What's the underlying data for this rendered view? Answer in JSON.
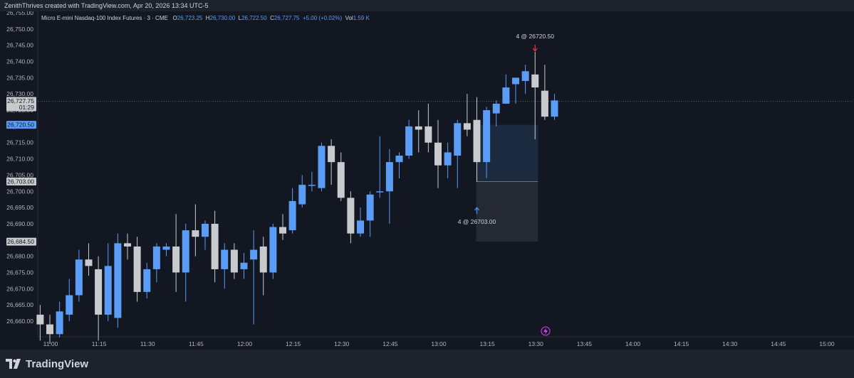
{
  "header": {
    "credit": "ZenithThrives created with TradingView.com, Apr 20, 2026 13:34 UTC-5"
  },
  "legend": {
    "symbol": "Micro E-mini Nasdaq-100 Index Futures · 3 · CME",
    "o_label": "O",
    "open": "26,723.25",
    "h_label": "H",
    "high": "26,730.00",
    "l_label": "L",
    "low": "26,722.50",
    "c_label": "C",
    "close": "26,727.75",
    "change": "+5.00 (+0.02%)",
    "vol_label": "Vol",
    "volume": "1.59 K"
  },
  "footer": {
    "brand": "TradingView"
  },
  "colors": {
    "up": "#5b9cf6",
    "down": "#c9cacd",
    "background": "#131722",
    "entry_arrow": "#4c8dff",
    "exit_arrow": "#f23645"
  },
  "chart_data": {
    "type": "candlestick",
    "interval_minutes": 3,
    "ylim": [
      26655,
      26755
    ],
    "y_ticks": [
      26660,
      26665,
      26670,
      26675,
      26680,
      26685,
      26690,
      26695,
      26700,
      26705,
      26710,
      26715,
      26720,
      26725,
      26730,
      26735,
      26740,
      26745,
      26750,
      26755
    ],
    "x_ticks": [
      "11:00",
      "11:15",
      "11:30",
      "11:45",
      "12:00",
      "12:15",
      "12:30",
      "12:45",
      "13:00",
      "13:15",
      "13:30",
      "13:45",
      "14:00",
      "14:15",
      "14:30",
      "14:45",
      "15:00"
    ],
    "x_tick_minutes": [
      660,
      675,
      690,
      705,
      720,
      735,
      750,
      765,
      780,
      795,
      810,
      825,
      840,
      855,
      870,
      885,
      900
    ],
    "xlim_minutes": [
      658,
      904
    ],
    "candles": [
      {
        "t": "10:57",
        "o": 26662,
        "h": 26665,
        "l": 26654,
        "c": 26659
      },
      {
        "t": "11:00",
        "o": 26659,
        "h": 26662,
        "l": 26653,
        "c": 26656
      },
      {
        "t": "11:03",
        "o": 26656,
        "h": 26666,
        "l": 26655,
        "c": 26663
      },
      {
        "t": "11:06",
        "o": 26662,
        "h": 26673,
        "l": 26660,
        "c": 26668
      },
      {
        "t": "11:09",
        "o": 26668,
        "h": 26682,
        "l": 26666,
        "c": 26679
      },
      {
        "t": "11:12",
        "o": 26679,
        "h": 26684,
        "l": 26674,
        "c": 26677
      },
      {
        "t": "11:15",
        "o": 26676,
        "h": 26680,
        "l": 26654,
        "c": 26662
      },
      {
        "t": "11:18",
        "o": 26662,
        "h": 26684,
        "l": 26660,
        "c": 26677
      },
      {
        "t": "11:21",
        "o": 26661,
        "h": 26687,
        "l": 26658,
        "c": 26684
      },
      {
        "t": "11:24",
        "o": 26684,
        "h": 26687,
        "l": 26679,
        "c": 26683
      },
      {
        "t": "11:27",
        "o": 26683,
        "h": 26686,
        "l": 26666,
        "c": 26669
      },
      {
        "t": "11:30",
        "o": 26669,
        "h": 26678,
        "l": 26667,
        "c": 26676
      },
      {
        "t": "11:33",
        "o": 26676,
        "h": 26684,
        "l": 26672,
        "c": 26683
      },
      {
        "t": "11:36",
        "o": 26682,
        "h": 26684,
        "l": 26680,
        "c": 26683
      },
      {
        "t": "11:39",
        "o": 26683,
        "h": 26693,
        "l": 26669,
        "c": 26675
      },
      {
        "t": "11:42",
        "o": 26675,
        "h": 26690,
        "l": 26666,
        "c": 26688
      },
      {
        "t": "11:45",
        "o": 26688,
        "h": 26696,
        "l": 26680,
        "c": 26686
      },
      {
        "t": "11:48",
        "o": 26686,
        "h": 26691,
        "l": 26682,
        "c": 26690
      },
      {
        "t": "11:51",
        "o": 26690,
        "h": 26694,
        "l": 26672,
        "c": 26676
      },
      {
        "t": "11:54",
        "o": 26676,
        "h": 26684,
        "l": 26670,
        "c": 26682
      },
      {
        "t": "11:57",
        "o": 26682,
        "h": 26684,
        "l": 26673,
        "c": 26675
      },
      {
        "t": "12:00",
        "o": 26676,
        "h": 26681,
        "l": 26673,
        "c": 26678
      },
      {
        "t": "12:03",
        "o": 26679,
        "h": 26688,
        "l": 26659,
        "c": 26682
      },
      {
        "t": "12:06",
        "o": 26683,
        "h": 26686,
        "l": 26668,
        "c": 26675
      },
      {
        "t": "12:09",
        "o": 26675,
        "h": 26690,
        "l": 26673,
        "c": 26689
      },
      {
        "t": "12:12",
        "o": 26689,
        "h": 26693,
        "l": 26685,
        "c": 26687
      },
      {
        "t": "12:15",
        "o": 26688,
        "h": 26701,
        "l": 26687,
        "c": 26697
      },
      {
        "t": "12:18",
        "o": 26696,
        "h": 26705,
        "l": 26695,
        "c": 26702
      },
      {
        "t": "12:21",
        "o": 26702,
        "h": 26706,
        "l": 26700,
        "c": 26702
      },
      {
        "t": "12:24",
        "o": 26701,
        "h": 26715,
        "l": 26700,
        "c": 26714
      },
      {
        "t": "12:27",
        "o": 26714,
        "h": 26716,
        "l": 26702,
        "c": 26709
      },
      {
        "t": "12:30",
        "o": 26709,
        "h": 26712,
        "l": 26697,
        "c": 26698
      },
      {
        "t": "12:33",
        "o": 26698,
        "h": 26700,
        "l": 26684,
        "c": 26687
      },
      {
        "t": "12:36",
        "o": 26687,
        "h": 26695,
        "l": 26686,
        "c": 26691
      },
      {
        "t": "12:39",
        "o": 26691,
        "h": 26700,
        "l": 26686,
        "c": 26699
      },
      {
        "t": "12:42",
        "o": 26700,
        "h": 26717,
        "l": 26698,
        "c": 26700
      },
      {
        "t": "12:45",
        "o": 26700,
        "h": 26713,
        "l": 26690,
        "c": 26709
      },
      {
        "t": "12:48",
        "o": 26709,
        "h": 26712,
        "l": 26704,
        "c": 26711
      },
      {
        "t": "12:51",
        "o": 26711,
        "h": 26722,
        "l": 26710,
        "c": 26720
      },
      {
        "t": "12:54",
        "o": 26720,
        "h": 26725,
        "l": 26712,
        "c": 26719
      },
      {
        "t": "12:57",
        "o": 26720,
        "h": 26727,
        "l": 26712,
        "c": 26715
      },
      {
        "t": "13:00",
        "o": 26715,
        "h": 26722,
        "l": 26701,
        "c": 26708
      },
      {
        "t": "13:03",
        "o": 26708,
        "h": 26715,
        "l": 26704,
        "c": 26712
      },
      {
        "t": "13:06",
        "o": 26711,
        "h": 26722,
        "l": 26701,
        "c": 26721
      },
      {
        "t": "13:09",
        "o": 26721,
        "h": 26730,
        "l": 26717,
        "c": 26719
      },
      {
        "t": "13:12",
        "o": 26722,
        "h": 26729,
        "l": 26703,
        "c": 26709
      },
      {
        "t": "13:15",
        "o": 26709,
        "h": 26726,
        "l": 26704,
        "c": 26725
      },
      {
        "t": "13:18",
        "o": 26724,
        "h": 26728,
        "l": 26720,
        "c": 26727
      },
      {
        "t": "13:21",
        "o": 26727,
        "h": 26736,
        "l": 26727,
        "c": 26732
      },
      {
        "t": "13:24",
        "o": 26733,
        "h": 26735,
        "l": 26727,
        "c": 26735
      },
      {
        "t": "13:27",
        "o": 26734,
        "h": 26739,
        "l": 26730,
        "c": 26737
      },
      {
        "t": "13:30",
        "o": 26736,
        "h": 26743,
        "l": 26716,
        "c": 26732
      },
      {
        "t": "13:33",
        "o": 26731,
        "h": 26739,
        "l": 26722,
        "c": 26723
      },
      {
        "t": "13:36",
        "o": 26723,
        "h": 26730,
        "l": 26722,
        "c": 26728
      }
    ],
    "price_tags": [
      {
        "label": "26,727.75",
        "sub": "01:29",
        "value": 26727.75,
        "style": "current"
      },
      {
        "label": "26,720.50",
        "value": 26720.5,
        "style": "blue"
      },
      {
        "label": "26,703.00",
        "value": 26703,
        "style": "gray"
      },
      {
        "label": "26,684.50",
        "value": 26684.5,
        "style": "gray"
      }
    ],
    "trade": {
      "entry": {
        "label": "4 @ 26703.00",
        "price": 26703.0,
        "time": "13:12"
      },
      "exit": {
        "label": "4 @ 26720.50",
        "price": 26720.5,
        "time": "13:30"
      },
      "stop_price": 26684.5,
      "start_minute": 792,
      "end_minute": 810
    },
    "last_price_line": 26727.75
  }
}
